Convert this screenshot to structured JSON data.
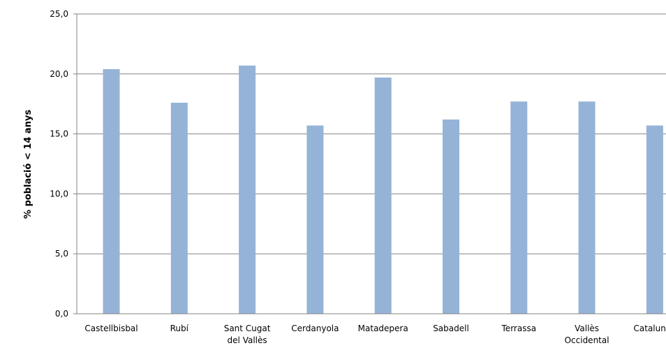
{
  "chart_data": {
    "type": "bar",
    "ylabel": "% població < 14 anys",
    "ylim": [
      0,
      25
    ],
    "yticks": [
      "0,0",
      "5,0",
      "10,0",
      "15,0",
      "20,0",
      "25,0"
    ],
    "grid": true,
    "categories": [
      [
        "Castellbisbal"
      ],
      [
        "Rubí"
      ],
      [
        "Sant Cugat",
        "del Vallès"
      ],
      [
        "Cerdanyola"
      ],
      [
        "Matadepera"
      ],
      [
        "Sabadell"
      ],
      [
        "Terrassa"
      ],
      [
        "Vallès",
        "Occidental"
      ],
      [
        "Catalunya"
      ]
    ],
    "values": [
      20.4,
      17.6,
      20.7,
      15.7,
      19.7,
      16.2,
      17.7,
      17.7,
      15.7
    ],
    "bar_color": "#95b3d7"
  }
}
